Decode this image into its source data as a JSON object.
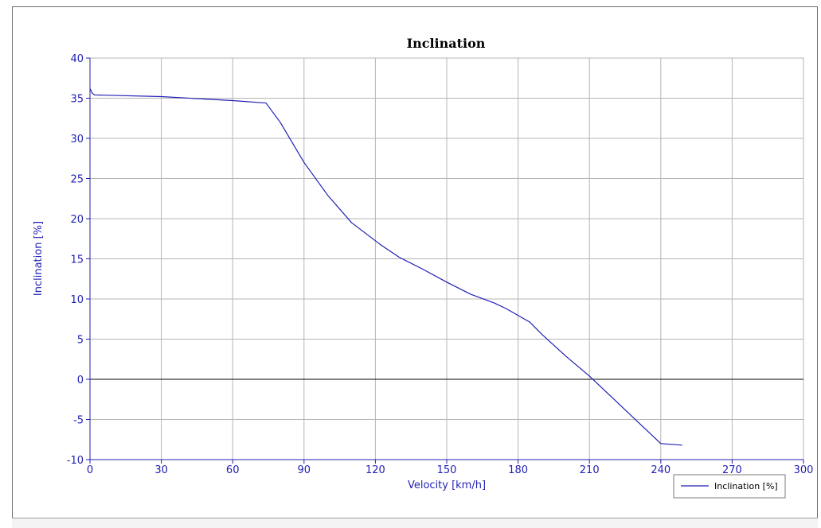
{
  "chart_data": {
    "type": "line",
    "title": "Inclination",
    "xlabel": "Velocity [km/h]",
    "ylabel": "Inclination [%]",
    "xlim": [
      0,
      300
    ],
    "ylim": [
      -10,
      40
    ],
    "xticks": [
      0,
      30,
      60,
      90,
      120,
      150,
      180,
      210,
      240,
      270,
      300
    ],
    "yticks": [
      -10,
      -5,
      0,
      5,
      10,
      15,
      20,
      25,
      30,
      35,
      40
    ],
    "grid": true,
    "legend_position": "bottom-right",
    "series": [
      {
        "name": "Inclination [%]",
        "color": "#1f1fb4",
        "x": [
          0,
          0.5,
          1,
          2,
          3,
          30,
          60,
          74,
          80,
          85,
          90,
          100,
          110,
          122,
          130,
          140,
          150,
          160,
          170,
          175,
          185,
          190,
          200,
          210,
          220,
          230,
          240,
          249
        ],
        "y": [
          36.2,
          35.9,
          35.6,
          35.4,
          35.4,
          35.2,
          34.7,
          34.4,
          32.0,
          29.5,
          27.0,
          22.9,
          19.5,
          16.8,
          15.2,
          13.7,
          12.1,
          10.6,
          9.5,
          8.8,
          7.1,
          5.6,
          2.9,
          0.4,
          -2.4,
          -5.2,
          -8.0,
          -8.2
        ]
      }
    ],
    "zero_line": true
  }
}
